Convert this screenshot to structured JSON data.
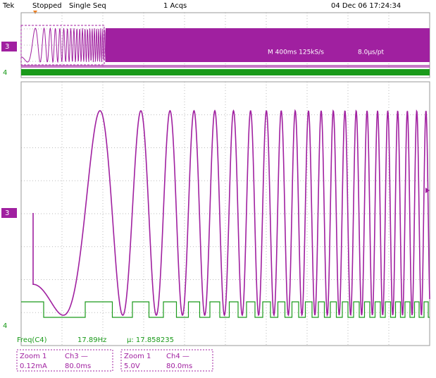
{
  "header": {
    "brand": "Tek",
    "state": "Stopped",
    "mode": "Single Seq",
    "acqs": "1 Acqs",
    "timestamp": "04 Dec 06 17:24:34"
  },
  "overview": {
    "timebase": "M 400ms 125kS/s",
    "resolution": "8.0µs/pt"
  },
  "markers": {
    "ch3": "3",
    "ch4": "4"
  },
  "measurement": {
    "label": "Freq(C4)",
    "value": "17.89Hz",
    "mean": "µ: 17.858235"
  },
  "zoom": [
    {
      "title": "Zoom 1",
      "channel": "Ch3 —",
      "scale": "0.12mA",
      "time": "80.0ms"
    },
    {
      "title": "Zoom 1",
      "channel": "Ch4 —",
      "scale": "5.0V",
      "time": "80.0ms"
    }
  ]
}
